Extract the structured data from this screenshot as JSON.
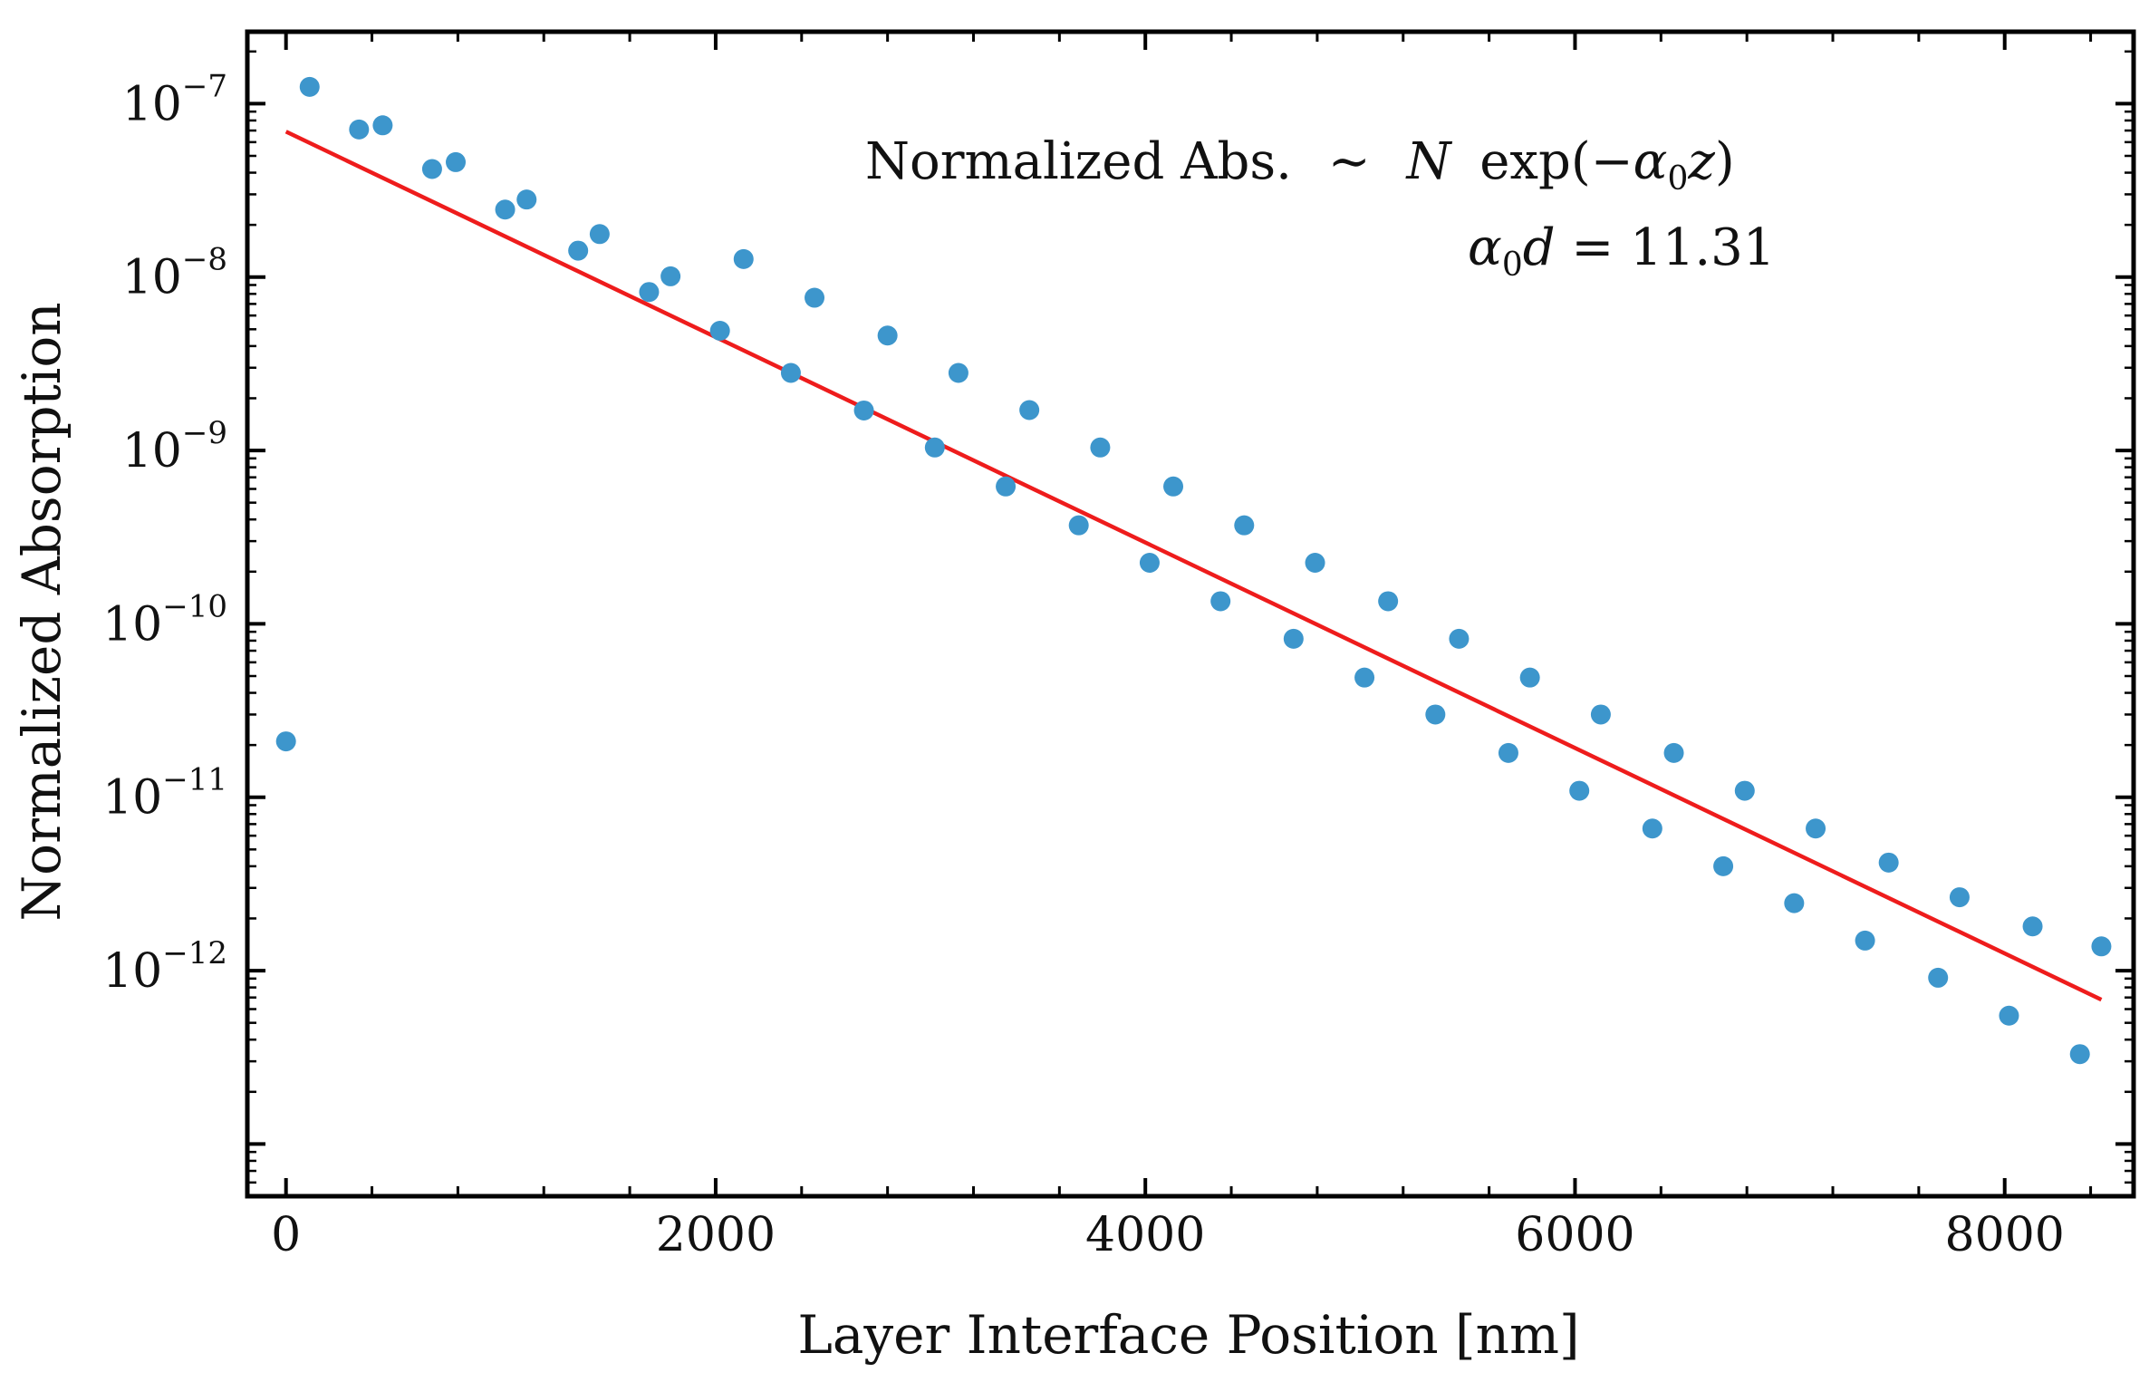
{
  "chart_data": {
    "type": "scatter",
    "xlabel": "Layer Interface Position [nm]",
    "ylabel": "Normalized Absorption",
    "xscale": "linear",
    "yscale": "log",
    "xlim": [
      -180,
      8600
    ],
    "ylim": [
      5e-14,
      2.6e-07
    ],
    "x_ticks": [
      0,
      2000,
      4000,
      6000,
      8000
    ],
    "x_tick_labels": [
      "0",
      "2000",
      "4000",
      "6000",
      "8000"
    ],
    "y_ticks": [
      1e-07,
      1e-08,
      1e-09,
      1e-10,
      1e-11,
      1e-12
    ],
    "y_tick_labels": [
      {
        "base": "10",
        "exp": "−7"
      },
      {
        "base": "10",
        "exp": "−8"
      },
      {
        "base": "10",
        "exp": "−9"
      },
      {
        "base": "10",
        "exp": "−10"
      },
      {
        "base": "10",
        "exp": "−11"
      },
      {
        "base": "10",
        "exp": "−12"
      }
    ],
    "series": [
      {
        "name": "Normalized Absorption",
        "kind": "points",
        "color": "#3d96cc",
        "points": [
          [
            0,
            2.1e-11
          ],
          [
            110,
            1.25e-07
          ],
          [
            340,
            7.1e-08
          ],
          [
            450,
            7.5e-08
          ],
          [
            680,
            4.2e-08
          ],
          [
            790,
            4.6e-08
          ],
          [
            1020,
            2.45e-08
          ],
          [
            1120,
            2.8e-08
          ],
          [
            1360,
            1.42e-08
          ],
          [
            1460,
            1.77e-08
          ],
          [
            1690,
            8.2e-09
          ],
          [
            1790,
            1.01e-08
          ],
          [
            2020,
            4.9e-09
          ],
          [
            2130,
            1.27e-08
          ],
          [
            2350,
            2.8e-09
          ],
          [
            2460,
            7.6e-09
          ],
          [
            2690,
            1.7e-09
          ],
          [
            2800,
            4.6e-09
          ],
          [
            3020,
            1.04e-09
          ],
          [
            3130,
            2.8e-09
          ],
          [
            3350,
            6.2e-10
          ],
          [
            3460,
            1.71e-09
          ],
          [
            3690,
            3.7e-10
          ],
          [
            3790,
            1.04e-09
          ],
          [
            4020,
            2.25e-10
          ],
          [
            4130,
            6.2e-10
          ],
          [
            4350,
            1.35e-10
          ],
          [
            4460,
            3.7e-10
          ],
          [
            4690,
            8.2e-11
          ],
          [
            4790,
            2.25e-10
          ],
          [
            5020,
            4.9e-11
          ],
          [
            5130,
            1.35e-10
          ],
          [
            5350,
            3e-11
          ],
          [
            5460,
            8.2e-11
          ],
          [
            5690,
            1.8e-11
          ],
          [
            5790,
            4.9e-11
          ],
          [
            6020,
            1.09e-11
          ],
          [
            6120,
            3e-11
          ],
          [
            6360,
            6.6e-12
          ],
          [
            6460,
            1.8e-11
          ],
          [
            6690,
            4e-12
          ],
          [
            6790,
            1.09e-11
          ],
          [
            7020,
            2.45e-12
          ],
          [
            7120,
            6.6e-12
          ],
          [
            7350,
            1.49e-12
          ],
          [
            7460,
            4.2e-12
          ],
          [
            7690,
            9.1e-13
          ],
          [
            7790,
            2.65e-12
          ],
          [
            8020,
            5.5e-13
          ],
          [
            8130,
            1.8e-12
          ],
          [
            8350,
            3.3e-13
          ],
          [
            8450,
            1.38e-12
          ]
        ]
      },
      {
        "name": "Fit",
        "kind": "line",
        "color": "#ee1c1c",
        "points": [
          [
            0,
            6.9e-08
          ],
          [
            8450,
            6.8e-13
          ]
        ]
      }
    ],
    "annotations": {
      "line1_text": "Normalized Abs.",
      "line1_sim": "∼",
      "line1_N": "N",
      "line1_exp": "exp(−",
      "line1_alpha": "α",
      "line1_sub": "0",
      "line1_z": "z",
      "line1_close": ")",
      "line2_alpha": "α",
      "line2_sub": "0",
      "line2_d": "d",
      "line2_eq": " = 11.31"
    }
  }
}
